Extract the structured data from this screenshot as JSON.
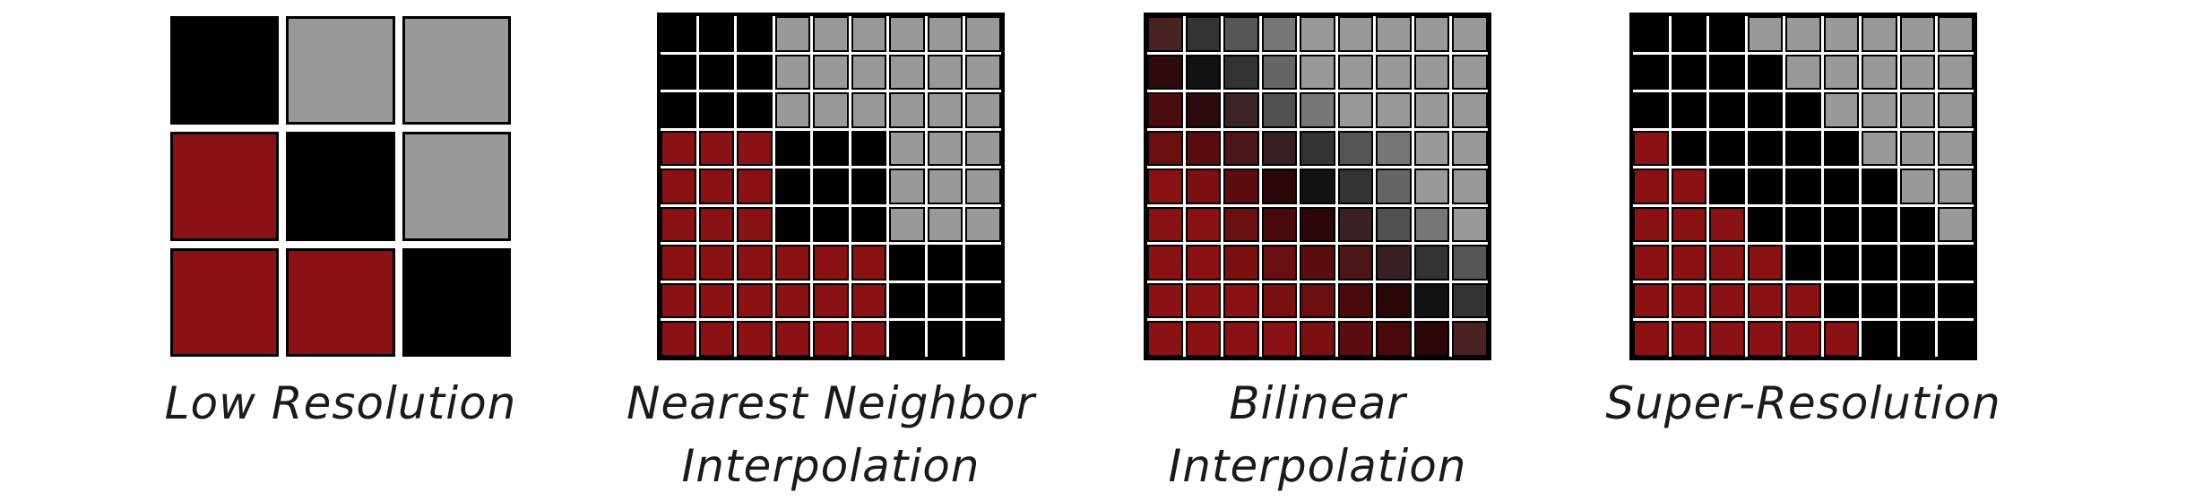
{
  "colors": {
    "black": "#000000",
    "gray": "#999999",
    "red": "#8b1214"
  },
  "panels": [
    {
      "id": "low-resolution",
      "label_lines": [
        "Low Resolution"
      ],
      "grid_size": 3,
      "pixels": [
        [
          "K",
          "G",
          "G"
        ],
        [
          "R",
          "K",
          "G"
        ],
        [
          "R",
          "R",
          "K"
        ]
      ]
    },
    {
      "id": "nearest-neighbor",
      "label_lines": [
        "Nearest Neighbor",
        "Interpolation"
      ],
      "grid_size": 9,
      "pixels": [
        [
          "K",
          "K",
          "K",
          "G",
          "G",
          "G",
          "G",
          "G",
          "G"
        ],
        [
          "K",
          "K",
          "K",
          "G",
          "G",
          "G",
          "G",
          "G",
          "G"
        ],
        [
          "K",
          "K",
          "K",
          "G",
          "G",
          "G",
          "G",
          "G",
          "G"
        ],
        [
          "R",
          "R",
          "R",
          "K",
          "K",
          "K",
          "G",
          "G",
          "G"
        ],
        [
          "R",
          "R",
          "R",
          "K",
          "K",
          "K",
          "G",
          "G",
          "G"
        ],
        [
          "R",
          "R",
          "R",
          "K",
          "K",
          "K",
          "G",
          "G",
          "G"
        ],
        [
          "R",
          "R",
          "R",
          "R",
          "R",
          "R",
          "K",
          "K",
          "K"
        ],
        [
          "R",
          "R",
          "R",
          "R",
          "R",
          "R",
          "K",
          "K",
          "K"
        ],
        [
          "R",
          "R",
          "R",
          "R",
          "R",
          "R",
          "K",
          "K",
          "K"
        ]
      ]
    },
    {
      "id": "bilinear",
      "label_lines": [
        "Bilinear",
        "Interpolation"
      ],
      "grid_size": 9,
      "pixels": [
        [
          "#4a2224",
          "#333333",
          "#555555",
          "#777777",
          "#999999",
          "#999999",
          "#999999",
          "#999999",
          "#999999"
        ],
        [
          "#2e0a0c",
          "#111111",
          "#333333",
          "#666666",
          "#999999",
          "#999999",
          "#999999",
          "#999999",
          "#999999"
        ],
        [
          "#4a0c0e",
          "#2a0a0c",
          "#3a2426",
          "#555050",
          "#777777",
          "#999999",
          "#999999",
          "#999999",
          "#999999"
        ],
        [
          "#6a0e10",
          "#5a0c0e",
          "#4a1618",
          "#382022",
          "#333333",
          "#555555",
          "#777777",
          "#999999",
          "#999999"
        ],
        [
          "#8b1214",
          "#7a1012",
          "#5a0c0e",
          "#2a0608",
          "#111111",
          "#333333",
          "#666666",
          "#999999",
          "#999999"
        ],
        [
          "#8b1214",
          "#8b1214",
          "#6a0e10",
          "#4a0a0c",
          "#2a0608",
          "#3a2224",
          "#555050",
          "#777777",
          "#999999"
        ],
        [
          "#8b1214",
          "#8b1214",
          "#7a1012",
          "#6a0e10",
          "#5a0c0e",
          "#4a1618",
          "#382022",
          "#333333",
          "#555555"
        ],
        [
          "#8b1214",
          "#8b1214",
          "#8b1214",
          "#7a1012",
          "#6a0e10",
          "#4a0a0c",
          "#2a0608",
          "#111111",
          "#333333"
        ],
        [
          "#8b1214",
          "#8b1214",
          "#8b1214",
          "#8b1214",
          "#7a1012",
          "#5a0c0e",
          "#4a0a0c",
          "#2a0608",
          "#4a2224"
        ]
      ]
    },
    {
      "id": "super-resolution",
      "label_lines": [
        "Super-Resolution"
      ],
      "grid_size": 9,
      "pixels": [
        [
          "K",
          "K",
          "K",
          "G",
          "G",
          "G",
          "G",
          "G",
          "G"
        ],
        [
          "K",
          "K",
          "K",
          "K",
          "G",
          "G",
          "G",
          "G",
          "G"
        ],
        [
          "K",
          "K",
          "K",
          "K",
          "K",
          "G",
          "G",
          "G",
          "G"
        ],
        [
          "R",
          "K",
          "K",
          "K",
          "K",
          "K",
          "G",
          "G",
          "G"
        ],
        [
          "R",
          "R",
          "K",
          "K",
          "K",
          "K",
          "K",
          "G",
          "G"
        ],
        [
          "R",
          "R",
          "R",
          "K",
          "K",
          "K",
          "K",
          "K",
          "G"
        ],
        [
          "R",
          "R",
          "R",
          "R",
          "K",
          "K",
          "K",
          "K",
          "K"
        ],
        [
          "R",
          "R",
          "R",
          "R",
          "R",
          "K",
          "K",
          "K",
          "K"
        ],
        [
          "R",
          "R",
          "R",
          "R",
          "R",
          "R",
          "K",
          "K",
          "K"
        ]
      ]
    }
  ]
}
